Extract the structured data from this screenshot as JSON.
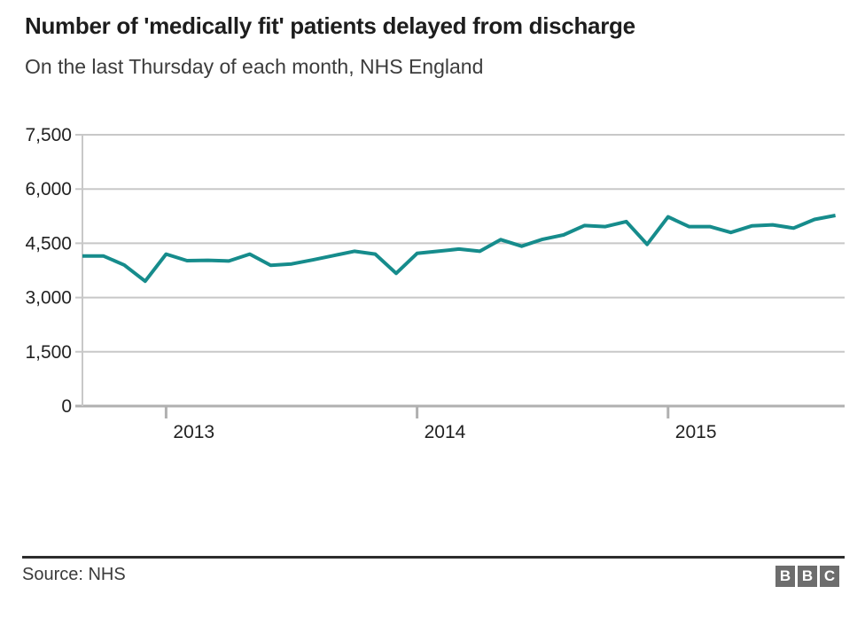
{
  "header": {
    "title": "Number of 'medically fit' patients delayed from discharge",
    "subtitle": "On the last Thursday of each month, NHS England"
  },
  "footer": {
    "source": "Source: NHS",
    "logo_letters": [
      "B",
      "B",
      "C"
    ]
  },
  "colors": {
    "line": "#168c8c",
    "gridline": "#c8c8c8",
    "axis": "#b0b0b0",
    "tick_label": "#222222",
    "title_text": "#1d1d1d",
    "footer_rule": "#2d2d2d",
    "bbc_gray": "#6d6d6d"
  },
  "chart_data": {
    "type": "line",
    "title": "Number of 'medically fit' patients delayed from discharge",
    "subtitle": "On the last Thursday of each month, NHS England",
    "x": [
      "2012-09",
      "2012-10",
      "2012-11",
      "2012-12",
      "2013-01",
      "2013-02",
      "2013-03",
      "2013-04",
      "2013-05",
      "2013-06",
      "2013-07",
      "2013-08",
      "2013-09",
      "2013-10",
      "2013-11",
      "2013-12",
      "2014-01",
      "2014-02",
      "2014-03",
      "2014-04",
      "2014-05",
      "2014-06",
      "2014-07",
      "2014-08",
      "2014-09",
      "2014-10",
      "2014-11",
      "2014-12",
      "2015-01",
      "2015-02",
      "2015-03",
      "2015-04",
      "2015-05",
      "2015-06",
      "2015-07",
      "2015-08",
      "2015-09"
    ],
    "values": [
      4150,
      4150,
      3900,
      3450,
      4200,
      4020,
      4030,
      4010,
      4200,
      3890,
      3930,
      4040,
      4160,
      4280,
      4200,
      3670,
      4220,
      4280,
      4340,
      4280,
      4600,
      4420,
      4610,
      4730,
      4990,
      4960,
      5100,
      4470,
      5230,
      4960,
      4960,
      4800,
      4980,
      5010,
      4920,
      5160,
      5270
    ],
    "ylim": [
      0,
      7500
    ],
    "yticks": [
      0,
      1500,
      3000,
      4500,
      6000,
      7500
    ],
    "ytick_labels": [
      "0",
      "1,500",
      "3,000",
      "4,500",
      "6,000",
      "7,500"
    ],
    "xtick_labels": [
      "2013",
      "2014",
      "2015"
    ],
    "xtick_month_index": [
      4,
      16,
      28
    ],
    "grid": true,
    "legend": false,
    "line_color": "#168c8c"
  }
}
